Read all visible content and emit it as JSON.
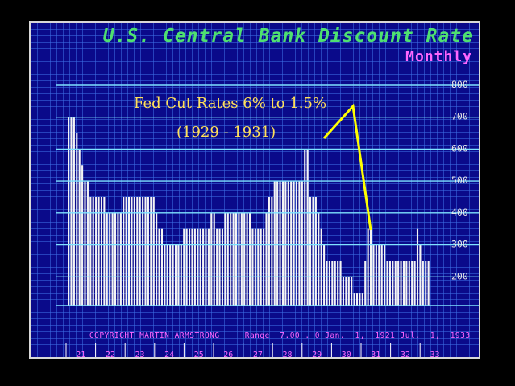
{
  "chart_data": {
    "type": "bar",
    "title": "U.S. Central Bank Discount Rate",
    "subtitle": "Monthly",
    "annotation": {
      "line1": "Fed Cut Rates 6% to 1.5%",
      "line2": "(1929 - 1931)"
    },
    "footer": {
      "copyright": "COPYRIGHT MARTIN ARMSTRONG",
      "range": "Range  7.00 . 0 Jan.  1,  1921 Jul.  1,  1933"
    },
    "y_ticks": [
      "200",
      "300",
      "400",
      "500",
      "600",
      "700",
      "800"
    ],
    "ylim": [
      110,
      810
    ],
    "x_year_labels": [
      "21",
      "22",
      "23",
      "24",
      "25",
      "26",
      "27",
      "28",
      "29",
      "30",
      "31",
      "32",
      "33"
    ],
    "segments": [
      [
        3,
        700
      ],
      [
        1,
        650
      ],
      [
        1,
        600
      ],
      [
        1,
        550
      ],
      [
        2,
        500
      ],
      [
        6,
        450
      ],
      [
        6,
        400
      ],
      [
        12,
        450
      ],
      [
        1,
        400
      ],
      [
        2,
        350
      ],
      [
        7,
        300
      ],
      [
        10,
        350
      ],
      [
        2,
        400
      ],
      [
        3,
        350
      ],
      [
        10,
        400
      ],
      [
        5,
        350
      ],
      [
        1,
        400
      ],
      [
        2,
        450
      ],
      [
        11,
        500
      ],
      [
        2,
        600
      ],
      [
        3,
        450
      ],
      [
        1,
        400
      ],
      [
        1,
        350
      ],
      [
        1,
        300
      ],
      [
        6,
        250
      ],
      [
        2,
        200
      ],
      [
        1,
        200
      ],
      [
        1,
        200
      ],
      [
        4,
        150
      ],
      [
        1,
        250
      ],
      [
        2,
        350
      ],
      [
        1,
        300
      ],
      [
        4,
        300
      ],
      [
        1,
        250
      ],
      [
        10,
        250
      ],
      [
        1,
        350
      ],
      [
        1,
        300
      ],
      [
        3,
        250
      ]
    ],
    "colors": {
      "bars": "#f4f4f4",
      "gridlines": "#7fe3ff",
      "annotation": "#ffe05a",
      "arrow": "#ffff00"
    }
  }
}
